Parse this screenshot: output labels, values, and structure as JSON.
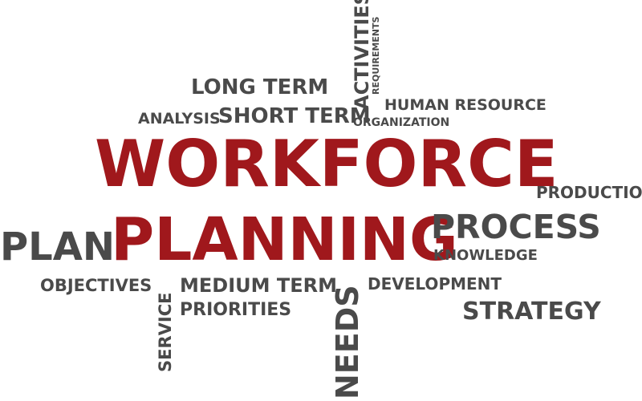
{
  "colors": {
    "accent": "#a0181c",
    "text": "#4a4a4a",
    "background": "#ffffff"
  },
  "words": {
    "workforce": "WORKFORCE",
    "planning": "PLANNING",
    "long_term": "LONG TERM",
    "short_term": "SHORT TERM",
    "analysis": "ANALYSIS",
    "activities": "ACTIVITIES",
    "requirements": "REQUIREMENTS",
    "human_resource": "HUMAN RESOURCE",
    "organization": "ORGANIZATION",
    "production": "PRODUCTION",
    "process": "PROCESS",
    "knowledge": "KNOWLEDGE",
    "plan": "PLAN",
    "objectives": "OBJECTIVES",
    "service": "SERVICE",
    "medium_term": "MEDIUM TERM",
    "priorities": "PRIORITIES",
    "needs": "NEEDS",
    "development": "DEVELOPMENT",
    "strategy": "STRATEGY"
  }
}
